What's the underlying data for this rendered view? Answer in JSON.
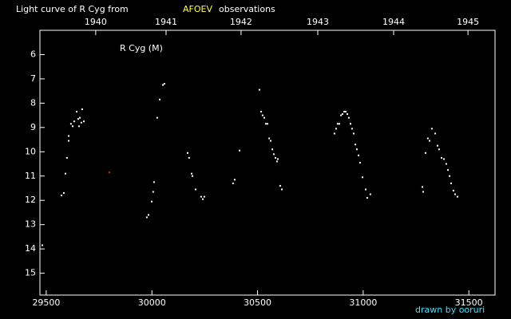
{
  "chart_data": {
    "type": "scatter",
    "title": "Light curve of R Cyg from",
    "title_source": "AFOEV",
    "title_suffix": "observations",
    "subtitle": "R Cyg (M)",
    "credit": "drawn by ooruri",
    "xlim": [
      29470,
      31624
    ],
    "xticks": [
      29500,
      30000,
      30500,
      31000,
      31500
    ],
    "x2ticks": [
      {
        "value": 29734,
        "label": "1940"
      },
      {
        "value": 30067,
        "label": "1941"
      },
      {
        "value": 30422,
        "label": "1942"
      },
      {
        "value": 30785,
        "label": "1943"
      },
      {
        "value": 31144,
        "label": "1944"
      },
      {
        "value": 31496,
        "label": "1945"
      }
    ],
    "ylim": [
      15.9,
      5
    ],
    "yticks": [
      6,
      7,
      8,
      9,
      10,
      11,
      12,
      13,
      14,
      15
    ],
    "series": [
      {
        "color": "#ffffff",
        "x": [
          29481,
          29572,
          29583,
          29591,
          29598,
          29606,
          29606,
          29617,
          29625,
          29632,
          29644,
          29651,
          29659,
          29655,
          29666,
          29670,
          29678,
          29976,
          29984,
          29999,
          30006,
          30010,
          30025,
          30037,
          30052,
          30059,
          30169,
          30176,
          30188,
          30192,
          30207,
          30233,
          30241,
          30248,
          30384,
          30392,
          30415,
          30509,
          30517,
          30524,
          30532,
          30539,
          30547,
          30555,
          30562,
          30570,
          30577,
          30585,
          30592,
          30596,
          30607,
          30615,
          30864,
          30872,
          30879,
          30887,
          30895,
          30902,
          30910,
          30917,
          30925,
          30932,
          30940,
          30947,
          30955,
          30963,
          30970,
          30978,
          30985,
          30997,
          31012,
          31019,
          31034,
          31280,
          31284,
          31295,
          31306,
          31314,
          31325,
          31341,
          31352,
          31359,
          31371,
          31382,
          31393,
          31401,
          31409,
          31416,
          31427,
          31435,
          31446
        ],
        "values": [
          13.85,
          11.8,
          11.7,
          10.9,
          10.25,
          9.55,
          9.35,
          8.85,
          8.95,
          8.75,
          8.35,
          8.65,
          8.6,
          8.95,
          8.8,
          8.25,
          8.75,
          12.7,
          12.6,
          12.05,
          11.65,
          11.25,
          8.6,
          7.85,
          7.25,
          7.2,
          10.05,
          10.25,
          10.9,
          11.0,
          11.55,
          11.85,
          11.95,
          11.85,
          11.3,
          11.15,
          9.95,
          7.45,
          8.35,
          8.5,
          8.6,
          8.85,
          8.85,
          9.45,
          9.55,
          9.9,
          10.1,
          10.25,
          10.4,
          10.3,
          11.4,
          11.55,
          9.25,
          9.05,
          8.85,
          8.85,
          8.5,
          8.45,
          8.35,
          8.35,
          8.45,
          8.6,
          8.85,
          9.05,
          9.25,
          9.7,
          9.9,
          10.15,
          10.45,
          11.05,
          11.55,
          11.9,
          11.75,
          11.45,
          11.65,
          10.05,
          9.45,
          9.55,
          9.05,
          9.25,
          9.75,
          9.9,
          10.25,
          10.3,
          10.5,
          10.75,
          11.0,
          11.3,
          11.6,
          11.75,
          11.85
        ]
      },
      {
        "color": "#ff2020",
        "x": [
          29799
        ],
        "values": [
          10.85
        ]
      }
    ]
  }
}
